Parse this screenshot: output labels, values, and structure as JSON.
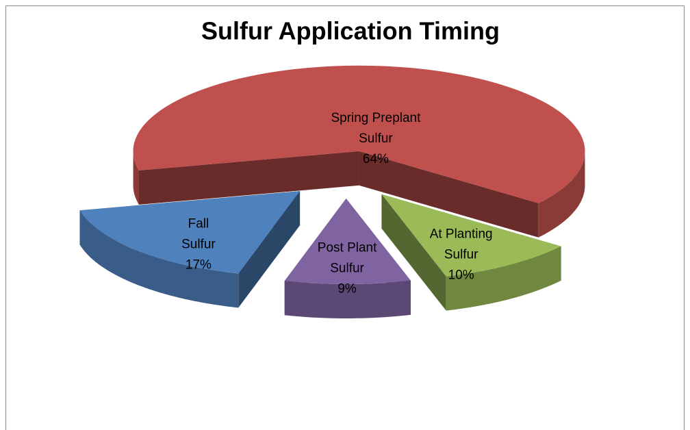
{
  "chart_data": {
    "type": "pie",
    "title": "Sulfur Application Timing",
    "categories": [
      "Spring Preplant Sulfur",
      "At Planting Sulfur",
      "Post Plant Sulfur",
      "Fall Sulfur"
    ],
    "values": [
      64,
      10,
      9,
      17
    ],
    "value_labels": [
      "64%",
      "10%",
      "9%",
      "17%"
    ],
    "colors": [
      "#c0504d",
      "#9bbb59",
      "#8064a2",
      "#4f81bd"
    ]
  }
}
